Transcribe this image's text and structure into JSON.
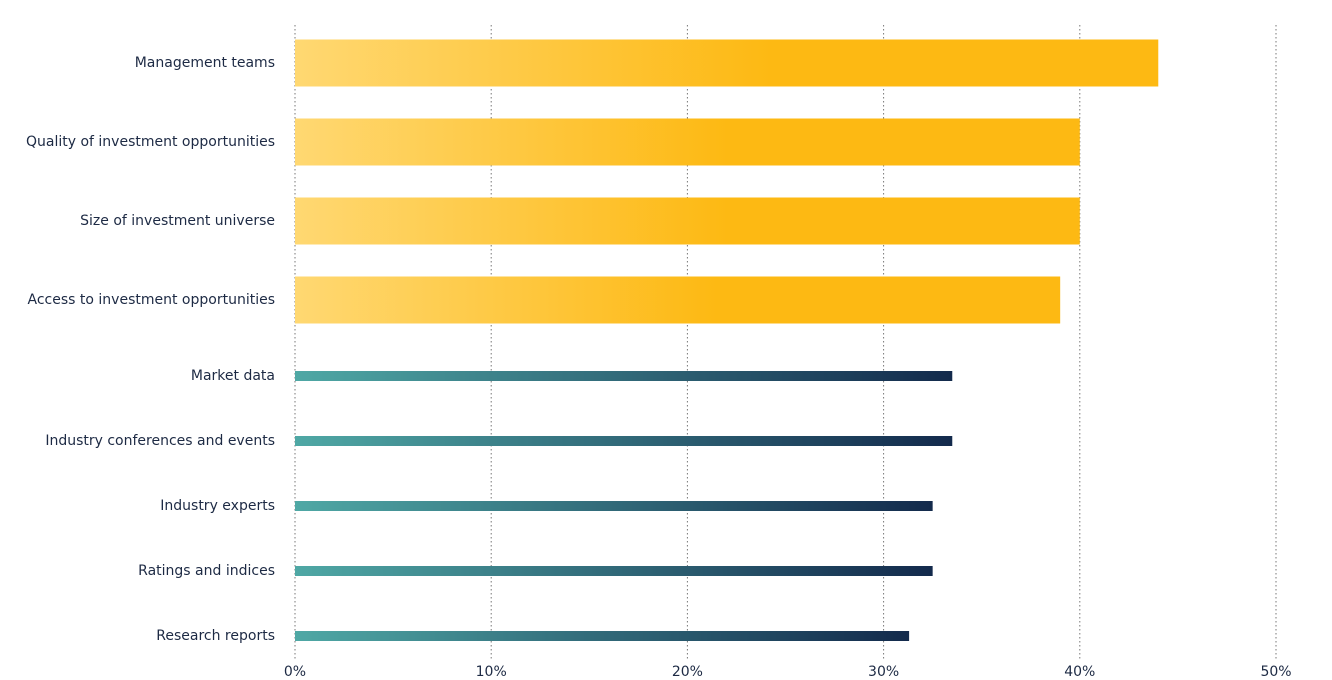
{
  "chart_data": {
    "type": "bar",
    "orientation": "horizontal",
    "categories": [
      "Management teams",
      "Quality of investment opportunities",
      "Size of investment universe",
      "Access to investment opportunities",
      "Market data",
      "Industry conferences and events",
      "Industry experts",
      "Ratings and indices",
      "Research reports"
    ],
    "values": [
      44,
      40,
      40,
      39,
      33.5,
      33.5,
      32.5,
      32.5,
      31.3
    ],
    "colors": [
      [
        "#ffd872",
        "#fdb913"
      ],
      [
        "#ffd872",
        "#fdb913"
      ],
      [
        "#ffd872",
        "#fdb913"
      ],
      [
        "#ffd872",
        "#fdb913"
      ],
      [
        "#4fa8a5",
        "#132a4c"
      ],
      [
        "#4fa8a5",
        "#132a4c"
      ],
      [
        "#4fa8a5",
        "#132a4c"
      ],
      [
        "#4fa8a5",
        "#132a4c"
      ],
      [
        "#4fa8a5",
        "#132a4c"
      ]
    ],
    "xlim": [
      0,
      50
    ],
    "xticks": [
      {
        "value": 0,
        "label": "0%"
      },
      {
        "value": 10,
        "label": "10%"
      },
      {
        "value": 20,
        "label": "20%"
      },
      {
        "value": 30,
        "label": "30%"
      },
      {
        "value": 40,
        "label": "40%"
      },
      {
        "value": 50,
        "label": "50%"
      }
    ],
    "grid": true
  }
}
